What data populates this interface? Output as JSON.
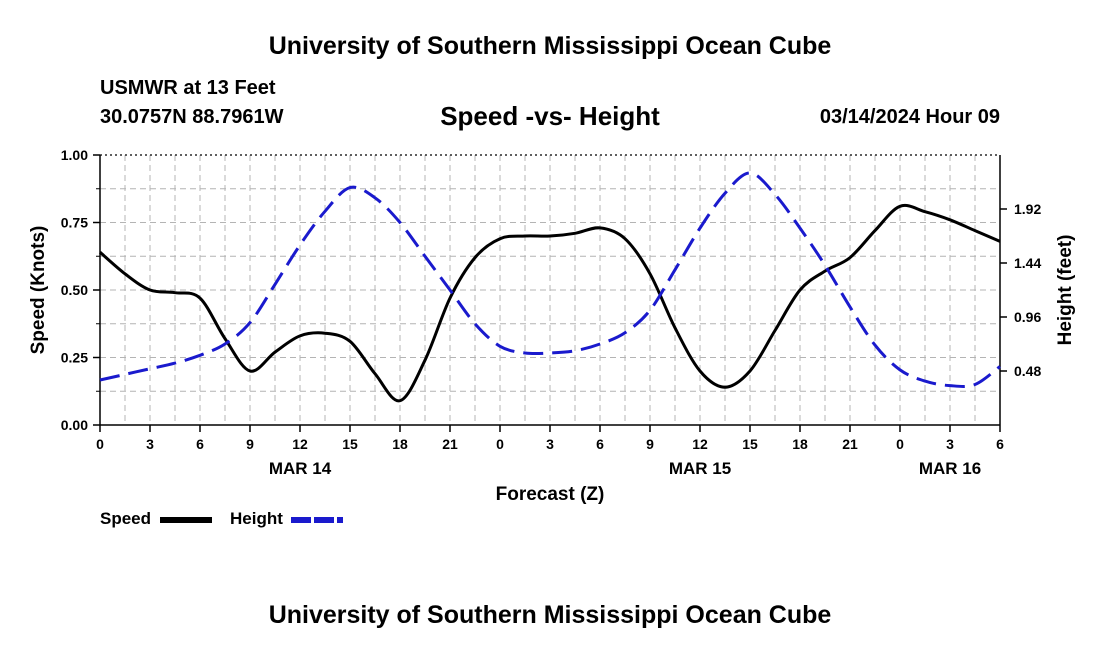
{
  "header": {
    "title": "University of Southern Mississippi Ocean Cube",
    "station": "USMWR at 13 Feet",
    "coords": "30.0757N  88.7961W",
    "chart_title": "Speed -vs- Height",
    "datetime": "03/14/2024 Hour 09"
  },
  "footer": {
    "title": "University of Southern Mississippi Ocean Cube"
  },
  "legend": {
    "speed_label": "Speed",
    "height_label": "Height",
    "speed_color": "#000000",
    "height_color": "#1a1acd"
  },
  "chart_data": {
    "type": "line",
    "title": "Speed -vs- Height",
    "xlabel": "Forecast (Z)",
    "ylabel_left": "Speed (Knots)",
    "ylabel_right": "Height (feet)",
    "x_unit": "forecast hour (0 = Mar 14 00Z)",
    "xlim": [
      0,
      54
    ],
    "x_tick_values": [
      0,
      3,
      6,
      9,
      12,
      15,
      18,
      21,
      24,
      27,
      30,
      33,
      36,
      39,
      42,
      45,
      48,
      51,
      54
    ],
    "x_tick_labels": [
      "0",
      "3",
      "6",
      "9",
      "12",
      "15",
      "18",
      "21",
      "0",
      "3",
      "6",
      "9",
      "12",
      "15",
      "18",
      "21",
      "0",
      "3",
      "6"
    ],
    "date_labels": [
      {
        "x": 12,
        "text": "MAR 14"
      },
      {
        "x": 36,
        "text": "MAR 15"
      },
      {
        "x": 51,
        "text": "MAR 16"
      }
    ],
    "ylim_left": [
      0,
      1
    ],
    "y_left_ticks": [
      0.0,
      0.25,
      0.5,
      0.75,
      1.0
    ],
    "y_left_tick_labels": [
      "0.00",
      "0.25",
      "0.50",
      "0.75",
      "1.00"
    ],
    "ylim_right": [
      0.0,
      2.4
    ],
    "y_right_ticks": [
      0.48,
      0.96,
      1.44,
      1.92
    ],
    "y_right_tick_labels": [
      "0.48",
      "0.96",
      "1.44",
      "1.92"
    ],
    "grid": true,
    "series": [
      {
        "name": "Speed",
        "axis": "left",
        "style": "solid",
        "color": "#000000",
        "x": [
          0,
          1.5,
          3,
          4.5,
          6,
          7.5,
          9,
          10.5,
          12,
          13.5,
          15,
          16.5,
          18,
          19.5,
          21,
          22.5,
          24,
          25.5,
          27,
          28.5,
          30,
          31.5,
          33,
          34.5,
          36,
          37.5,
          39,
          40.5,
          42,
          43.5,
          45,
          46.5,
          48,
          49.5,
          51,
          52.5,
          54
        ],
        "values": [
          0.64,
          0.56,
          0.5,
          0.49,
          0.47,
          0.32,
          0.2,
          0.27,
          0.33,
          0.34,
          0.31,
          0.19,
          0.09,
          0.24,
          0.47,
          0.62,
          0.69,
          0.7,
          0.7,
          0.71,
          0.73,
          0.69,
          0.56,
          0.36,
          0.2,
          0.14,
          0.2,
          0.35,
          0.5,
          0.57,
          0.62,
          0.72,
          0.81,
          0.79,
          0.76,
          0.72,
          0.68
        ]
      },
      {
        "name": "Height",
        "axis": "right",
        "style": "dashed",
        "color": "#1a1acd",
        "x": [
          0,
          1.5,
          3,
          4.5,
          6,
          7.5,
          9,
          10.5,
          12,
          13.5,
          15,
          16.5,
          18,
          19.5,
          21,
          22.5,
          24,
          25.5,
          27,
          28.5,
          30,
          31.5,
          33,
          34.5,
          36,
          37.5,
          39,
          40.5,
          42,
          43.5,
          45,
          46.5,
          48,
          49.5,
          51,
          52.5,
          54
        ],
        "values": [
          0.4,
          0.45,
          0.5,
          0.55,
          0.62,
          0.72,
          0.91,
          1.25,
          1.6,
          1.9,
          2.11,
          2.02,
          1.8,
          1.5,
          1.2,
          0.9,
          0.7,
          0.64,
          0.64,
          0.66,
          0.72,
          0.82,
          1.02,
          1.38,
          1.75,
          2.06,
          2.24,
          2.05,
          1.75,
          1.42,
          1.05,
          0.71,
          0.49,
          0.39,
          0.35,
          0.36,
          0.52
        ]
      }
    ]
  }
}
